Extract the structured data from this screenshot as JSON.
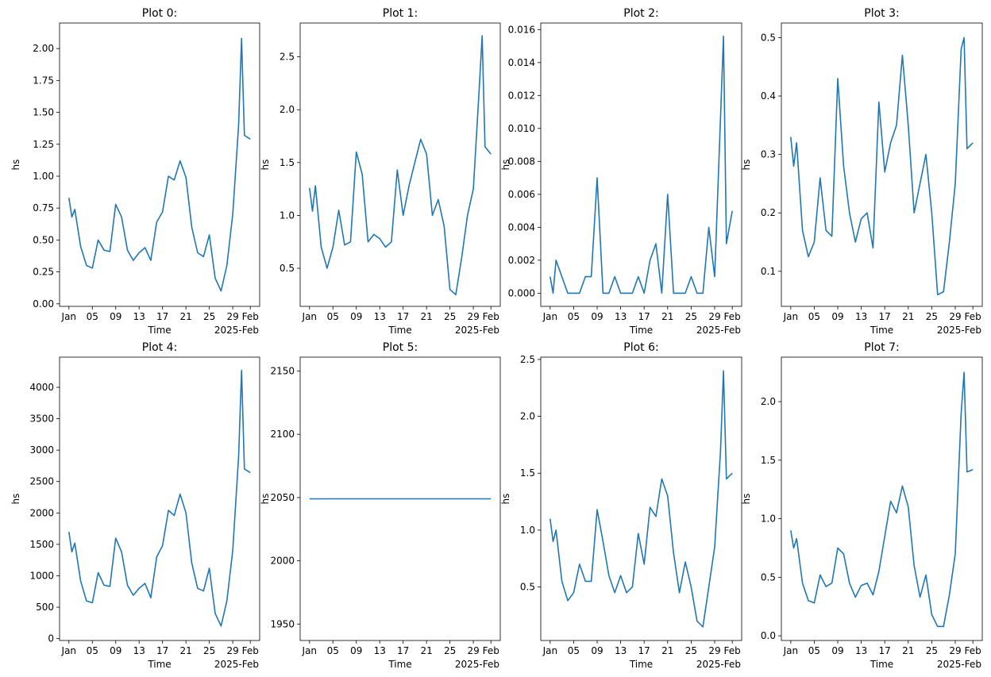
{
  "colors": {
    "line": "#1f77b4",
    "axes": "#000000",
    "background": "#ffffff"
  },
  "chart_data": [
    {
      "type": "line",
      "title": "Plot 0:",
      "xlabel": "Time",
      "ylabel": "hs",
      "xtick_labels": [
        "Jan",
        "05",
        "09",
        "13",
        "17",
        "21",
        "25",
        "29",
        "Feb"
      ],
      "x_offset_label": "2025-Feb",
      "ylim": [
        -0.02,
        2.2
      ],
      "yticks": [
        0.0,
        0.25,
        0.5,
        0.75,
        1.0,
        1.25,
        1.5,
        1.75,
        2.0
      ],
      "ytick_labels": [
        "0.00",
        "0.25",
        "0.50",
        "0.75",
        "1.00",
        "1.25",
        "1.50",
        "1.75",
        "2.00"
      ],
      "series": [
        {
          "x": [
            "01-01",
            "01-01 12:00",
            "01-02",
            "01-03",
            "01-04",
            "01-05",
            "01-06",
            "01-07",
            "01-08",
            "01-09",
            "01-10",
            "01-11",
            "01-12",
            "01-13",
            "01-14",
            "01-15",
            "01-16",
            "01-17",
            "01-18",
            "01-19",
            "01-20",
            "01-21",
            "01-22",
            "01-23",
            "01-24",
            "01-25",
            "01-26",
            "01-27",
            "01-28",
            "01-29",
            "01-30",
            "01-30 12:00",
            "01-31",
            "02-01"
          ],
          "y": [
            0.83,
            0.68,
            0.74,
            0.45,
            0.3,
            0.28,
            0.5,
            0.42,
            0.41,
            0.78,
            0.68,
            0.42,
            0.34,
            0.4,
            0.44,
            0.34,
            0.64,
            0.72,
            1.0,
            0.97,
            1.12,
            0.99,
            0.6,
            0.4,
            0.37,
            0.54,
            0.2,
            0.1,
            0.3,
            0.7,
            1.4,
            2.08,
            1.32,
            1.29
          ]
        }
      ]
    },
    {
      "type": "line",
      "title": "Plot 1:",
      "xlabel": "Time",
      "ylabel": "hs",
      "xtick_labels": [
        "Jan",
        "05",
        "09",
        "13",
        "17",
        "21",
        "25",
        "29",
        "Feb"
      ],
      "x_offset_label": "2025-Feb",
      "ylim": [
        0.14,
        2.82
      ],
      "yticks": [
        0.5,
        1.0,
        1.5,
        2.0,
        2.5
      ],
      "ytick_labels": [
        "0.5",
        "1.0",
        "1.5",
        "2.0",
        "2.5"
      ],
      "series": [
        {
          "x": [
            "01-01",
            "01-01 12:00",
            "01-02",
            "01-03",
            "01-04",
            "01-05",
            "01-06",
            "01-07",
            "01-08",
            "01-09",
            "01-10",
            "01-11",
            "01-12",
            "01-13",
            "01-14",
            "01-15",
            "01-16",
            "01-17",
            "01-18",
            "01-19",
            "01-20",
            "01-21",
            "01-22",
            "01-23",
            "01-24",
            "01-25",
            "01-26",
            "01-27",
            "01-28",
            "01-29",
            "01-30",
            "01-30 12:00",
            "01-31",
            "02-01"
          ],
          "y": [
            1.26,
            1.04,
            1.28,
            0.7,
            0.5,
            0.7,
            1.05,
            0.72,
            0.75,
            1.6,
            1.39,
            0.75,
            0.82,
            0.78,
            0.7,
            0.75,
            1.43,
            1.0,
            1.28,
            1.5,
            1.72,
            1.58,
            1.0,
            1.15,
            0.9,
            0.3,
            0.25,
            0.6,
            1.0,
            1.25,
            2.2,
            2.7,
            1.65,
            1.58
          ]
        }
      ]
    },
    {
      "type": "line",
      "title": "Plot 2:",
      "xlabel": "Time",
      "ylabel": "hs",
      "xtick_labels": [
        "Jan",
        "05",
        "09",
        "13",
        "17",
        "21",
        "25",
        "29",
        "Feb"
      ],
      "x_offset_label": "2025-Feb",
      "ylim": [
        -0.0008,
        0.0164
      ],
      "yticks": [
        0.0,
        0.002,
        0.004,
        0.006,
        0.008,
        0.01,
        0.012,
        0.014,
        0.016
      ],
      "ytick_labels": [
        "0.000",
        "0.002",
        "0.004",
        "0.006",
        "0.008",
        "0.010",
        "0.012",
        "0.014",
        "0.016"
      ],
      "series": [
        {
          "x": [
            "01-01",
            "01-01 12:00",
            "01-02",
            "01-03",
            "01-04",
            "01-05",
            "01-06",
            "01-07",
            "01-08",
            "01-09",
            "01-10",
            "01-11",
            "01-12",
            "01-13",
            "01-14",
            "01-15",
            "01-16",
            "01-17",
            "01-18",
            "01-19",
            "01-20",
            "01-21",
            "01-22",
            "01-23",
            "01-24",
            "01-25",
            "01-26",
            "01-27",
            "01-28",
            "01-29",
            "01-30",
            "01-30 12:00",
            "01-31",
            "02-01"
          ],
          "y": [
            0.001,
            0.0,
            0.002,
            0.001,
            0.0,
            0.0,
            0.0,
            0.001,
            0.001,
            0.007,
            0.0,
            0.0,
            0.001,
            0.0,
            0.0,
            0.0,
            0.001,
            0.0,
            0.002,
            0.003,
            0.0,
            0.006,
            0.0,
            0.0,
            0.0,
            0.001,
            0.0,
            0.0,
            0.004,
            0.001,
            0.0107,
            0.0156,
            0.003,
            0.005
          ]
        }
      ]
    },
    {
      "type": "line",
      "title": "Plot 3:",
      "xlabel": "Time",
      "ylabel": "hs",
      "xtick_labels": [
        "Jan",
        "05",
        "09",
        "13",
        "17",
        "21",
        "25",
        "29",
        "Feb"
      ],
      "x_offset_label": "2025-Feb",
      "ylim": [
        0.04,
        0.525
      ],
      "yticks": [
        0.1,
        0.2,
        0.3,
        0.4,
        0.5
      ],
      "ytick_labels": [
        "0.1",
        "0.2",
        "0.3",
        "0.4",
        "0.5"
      ],
      "series": [
        {
          "x": [
            "01-01",
            "01-01 12:00",
            "01-02",
            "01-03",
            "01-04",
            "01-05",
            "01-06",
            "01-07",
            "01-08",
            "01-09",
            "01-10",
            "01-11",
            "01-12",
            "01-13",
            "01-14",
            "01-15",
            "01-16",
            "01-17",
            "01-18",
            "01-19",
            "01-20",
            "01-21",
            "01-22",
            "01-23",
            "01-24",
            "01-25",
            "01-26",
            "01-27",
            "01-28",
            "01-29",
            "01-30",
            "01-30 12:00",
            "01-31",
            "02-01"
          ],
          "y": [
            0.33,
            0.28,
            0.32,
            0.17,
            0.125,
            0.15,
            0.26,
            0.17,
            0.16,
            0.43,
            0.28,
            0.2,
            0.15,
            0.19,
            0.2,
            0.14,
            0.39,
            0.27,
            0.32,
            0.35,
            0.47,
            0.35,
            0.2,
            0.25,
            0.3,
            0.2,
            0.06,
            0.065,
            0.15,
            0.25,
            0.48,
            0.5,
            0.31,
            0.32
          ]
        }
      ]
    },
    {
      "type": "line",
      "title": "Plot 4:",
      "xlabel": "Time",
      "ylabel": "hs",
      "xtick_labels": [
        "Jan",
        "05",
        "09",
        "13",
        "17",
        "21",
        "25",
        "29",
        "Feb"
      ],
      "x_offset_label": "2025-Feb",
      "ylim": [
        -30,
        4480
      ],
      "yticks": [
        0,
        500,
        1000,
        1500,
        2000,
        2500,
        3000,
        3500,
        4000
      ],
      "ytick_labels": [
        "0",
        "500",
        "1000",
        "1500",
        "2000",
        "2500",
        "3000",
        "3500",
        "4000"
      ],
      "series": [
        {
          "x": [
            "01-01",
            "01-01 12:00",
            "01-02",
            "01-03",
            "01-04",
            "01-05",
            "01-06",
            "01-07",
            "01-08",
            "01-09",
            "01-10",
            "01-11",
            "01-12",
            "01-13",
            "01-14",
            "01-15",
            "01-16",
            "01-17",
            "01-18",
            "01-19",
            "01-20",
            "01-21",
            "01-22",
            "01-23",
            "01-24",
            "01-25",
            "01-26",
            "01-27",
            "01-28",
            "01-29",
            "01-30",
            "01-30 12:00",
            "01-31",
            "02-01"
          ],
          "y": [
            1700,
            1380,
            1520,
            920,
            600,
            570,
            1050,
            850,
            830,
            1600,
            1380,
            850,
            690,
            800,
            880,
            650,
            1300,
            1480,
            2040,
            1960,
            2300,
            2000,
            1200,
            800,
            760,
            1120,
            400,
            200,
            600,
            1400,
            2900,
            4270,
            2700,
            2640
          ]
        }
      ]
    },
    {
      "type": "line",
      "title": "Plot 5:",
      "xlabel": "Time",
      "ylabel": "hs",
      "xtick_labels": [
        "Jan",
        "05",
        "09",
        "13",
        "17",
        "21",
        "25",
        "29",
        "Feb"
      ],
      "x_offset_label": "2025-Feb",
      "ylim": [
        1937,
        2161
      ],
      "yticks": [
        1950,
        2000,
        2050,
        2100,
        2150
      ],
      "ytick_labels": [
        "1950",
        "2000",
        "2050",
        "2100",
        "2150"
      ],
      "series": [
        {
          "x": [
            "01-01",
            "02-01"
          ],
          "y": [
            2049,
            2049
          ]
        }
      ]
    },
    {
      "type": "line",
      "title": "Plot 6:",
      "xlabel": "Time",
      "ylabel": "hs",
      "xtick_labels": [
        "Jan",
        "05",
        "09",
        "13",
        "17",
        "21",
        "25",
        "29",
        "Feb"
      ],
      "x_offset_label": "2025-Feb",
      "ylim": [
        0.03,
        2.52
      ],
      "yticks": [
        0.5,
        1.0,
        1.5,
        2.0,
        2.5
      ],
      "ytick_labels": [
        "0.5",
        "1.0",
        "1.5",
        "2.0",
        "2.5"
      ],
      "series": [
        {
          "x": [
            "01-01",
            "01-01 12:00",
            "01-02",
            "01-03",
            "01-04",
            "01-05",
            "01-06",
            "01-07",
            "01-08",
            "01-09",
            "01-10",
            "01-11",
            "01-12",
            "01-13",
            "01-14",
            "01-15",
            "01-16",
            "01-17",
            "01-18",
            "01-19",
            "01-20",
            "01-21",
            "01-22",
            "01-23",
            "01-24",
            "01-25",
            "01-26",
            "01-27",
            "01-28",
            "01-29",
            "01-30",
            "01-30 12:00",
            "01-31",
            "02-01"
          ],
          "y": [
            1.1,
            0.9,
            1.0,
            0.55,
            0.38,
            0.45,
            0.7,
            0.55,
            0.55,
            1.18,
            0.9,
            0.6,
            0.45,
            0.6,
            0.45,
            0.5,
            0.97,
            0.7,
            1.2,
            1.12,
            1.45,
            1.3,
            0.8,
            0.45,
            0.72,
            0.5,
            0.2,
            0.15,
            0.5,
            0.85,
            1.7,
            2.4,
            1.45,
            1.5
          ]
        }
      ]
    },
    {
      "type": "line",
      "title": "Plot 7:",
      "xlabel": "Time",
      "ylabel": "hs",
      "xtick_labels": [
        "Jan",
        "05",
        "09",
        "13",
        "17",
        "21",
        "25",
        "29",
        "Feb"
      ],
      "x_offset_label": "2025-Feb",
      "ylim": [
        -0.04,
        2.38
      ],
      "yticks": [
        0.0,
        0.5,
        1.0,
        1.5,
        2.0
      ],
      "ytick_labels": [
        "0.0",
        "0.5",
        "1.0",
        "1.5",
        "2.0"
      ],
      "series": [
        {
          "x": [
            "01-01",
            "01-01 12:00",
            "01-02",
            "01-03",
            "01-04",
            "01-05",
            "01-06",
            "01-07",
            "01-08",
            "01-09",
            "01-10",
            "01-11",
            "01-12",
            "01-13",
            "01-14",
            "01-15",
            "01-16",
            "01-17",
            "01-18",
            "01-19",
            "01-20",
            "01-21",
            "01-22",
            "01-23",
            "01-24",
            "01-25",
            "01-26",
            "01-27",
            "01-28",
            "01-29",
            "01-30",
            "01-30 12:00",
            "01-31",
            "02-01"
          ],
          "y": [
            0.9,
            0.75,
            0.83,
            0.45,
            0.3,
            0.28,
            0.52,
            0.42,
            0.45,
            0.75,
            0.7,
            0.45,
            0.33,
            0.43,
            0.45,
            0.35,
            0.55,
            0.85,
            1.15,
            1.05,
            1.28,
            1.1,
            0.6,
            0.33,
            0.52,
            0.18,
            0.08,
            0.08,
            0.35,
            0.7,
            1.9,
            2.25,
            1.4,
            1.42
          ]
        }
      ]
    }
  ]
}
